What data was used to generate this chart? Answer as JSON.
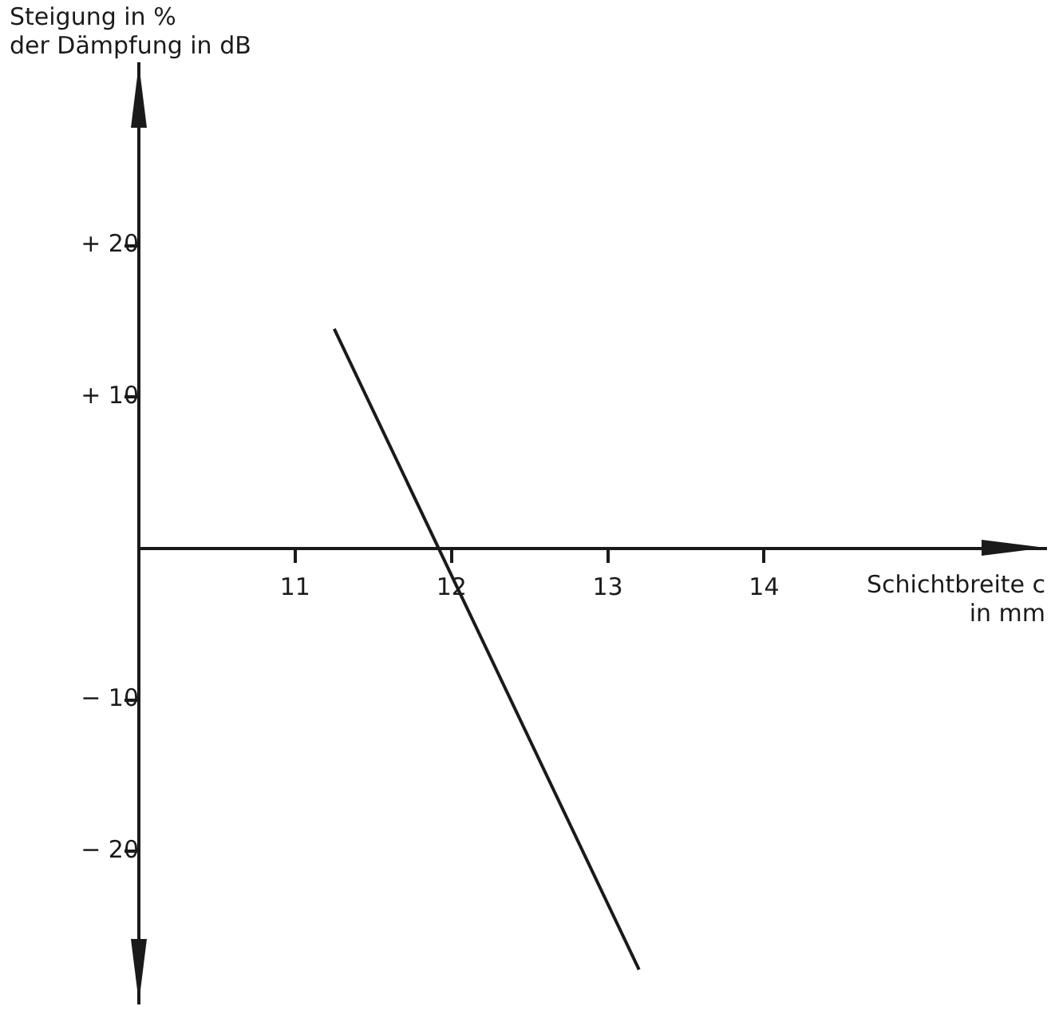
{
  "chart_data": {
    "type": "line",
    "xlabel": "Schichtbreite c\nin mm",
    "ylabel": "Steigung in %\nder Dämpfung in dB",
    "x": [
      11.25,
      13.2
    ],
    "series": [
      {
        "color": "#1a1a1a",
        "values": [
          14.5,
          -27.8
        ]
      }
    ],
    "xlim": [
      10,
      15.8
    ],
    "xticks": [
      11,
      12,
      13,
      14
    ],
    "ylim": [
      -30,
      32
    ],
    "yticks": [
      {
        "value": 20,
        "label": "+ 20"
      },
      {
        "value": 10,
        "label": "+ 10"
      },
      {
        "value": -10,
        "label": "− 10"
      },
      {
        "value": -20,
        "label": "− 20"
      }
    ],
    "marker": "none",
    "line_style": "solid",
    "legend": false
  }
}
